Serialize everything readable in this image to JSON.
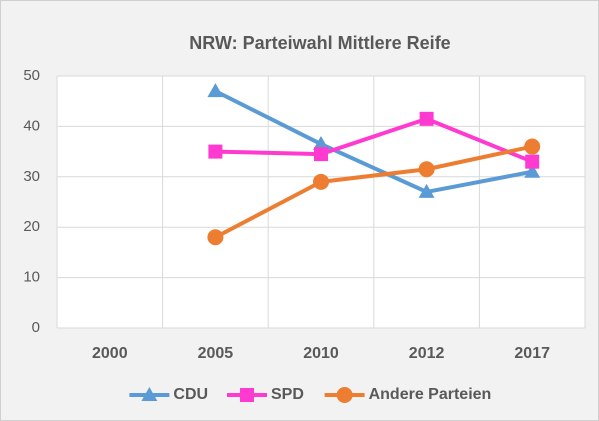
{
  "chart_data": {
    "type": "line",
    "title": "NRW: Parteiwahl Mittlere Reife",
    "categories": [
      "2000",
      "2005",
      "2010",
      "2012",
      "2017"
    ],
    "series": [
      {
        "name": "CDU",
        "color": "#5b9bd5",
        "marker": "triangle",
        "values": [
          null,
          47,
          36.5,
          27,
          31
        ]
      },
      {
        "name": "SPD",
        "color": "#ff3ad0",
        "marker": "square",
        "values": [
          null,
          35,
          34.5,
          41.5,
          33
        ]
      },
      {
        "name": "Andere Parteien",
        "color": "#ed7d31",
        "marker": "circle",
        "values": [
          null,
          18,
          29,
          31.5,
          36
        ]
      }
    ],
    "ylim": [
      0,
      50
    ],
    "yticks": [
      0,
      10,
      20,
      30,
      40,
      50
    ],
    "grid": true,
    "legend": "bottom"
  }
}
